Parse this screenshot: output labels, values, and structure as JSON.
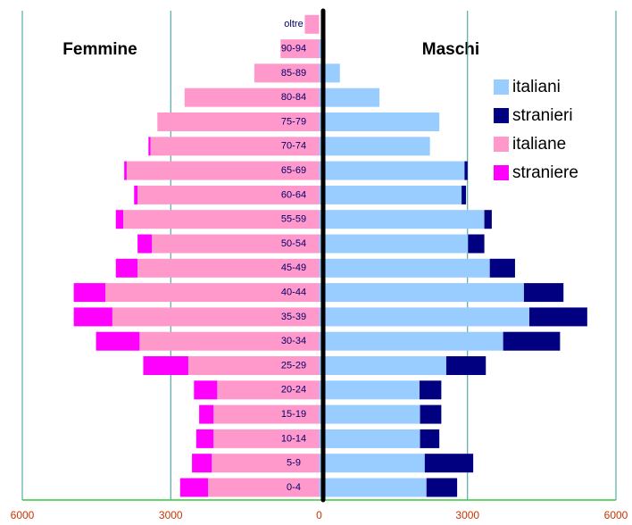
{
  "chart_data": {
    "type": "population-pyramid",
    "left_title": "Femmine",
    "right_title": "Maschi",
    "categories": [
      "0-4",
      "5-9",
      "10-14",
      "15-19",
      "20-24",
      "25-29",
      "30-34",
      "35-39",
      "40-44",
      "45-49",
      "50-54",
      "55-59",
      "60-64",
      "65-69",
      "70-74",
      "75-79",
      "80-84",
      "85-89",
      "90-94",
      "oltre"
    ],
    "right_series": [
      {
        "name": "italiani",
        "color": "#99ccff",
        "values": [
          2170,
          2135,
          2040,
          2040,
          2030,
          2570,
          3720,
          4250,
          4140,
          3450,
          3010,
          3340,
          2880,
          2940,
          2240,
          2430,
          1220,
          420,
          130,
          0
        ]
      },
      {
        "name": "stranieri",
        "color": "#000080",
        "values": [
          620,
          980,
          390,
          430,
          440,
          800,
          1150,
          1170,
          800,
          510,
          330,
          150,
          90,
          60,
          0,
          0,
          0,
          0,
          0,
          0
        ]
      }
    ],
    "left_series": [
      {
        "name": "italiane",
        "color": "#ff99cc",
        "values": [
          2245,
          2170,
          2135,
          2135,
          2060,
          2645,
          3630,
          4180,
          4320,
          3670,
          3380,
          3960,
          3670,
          3890,
          3410,
          3270,
          2720,
          1310,
          780,
          290
        ]
      },
      {
        "name": "straniere",
        "color": "#ff00ff",
        "values": [
          565,
          400,
          350,
          290,
          470,
          910,
          880,
          780,
          640,
          440,
          290,
          150,
          70,
          50,
          40,
          0,
          0,
          0,
          0,
          0
        ]
      }
    ],
    "xlim": [
      -6000,
      6000
    ],
    "xticks": [
      {
        "value": -6000,
        "label": "6000"
      },
      {
        "value": -3000,
        "label": "3000"
      },
      0,
      3000,
      6000
    ],
    "grid": true
  }
}
